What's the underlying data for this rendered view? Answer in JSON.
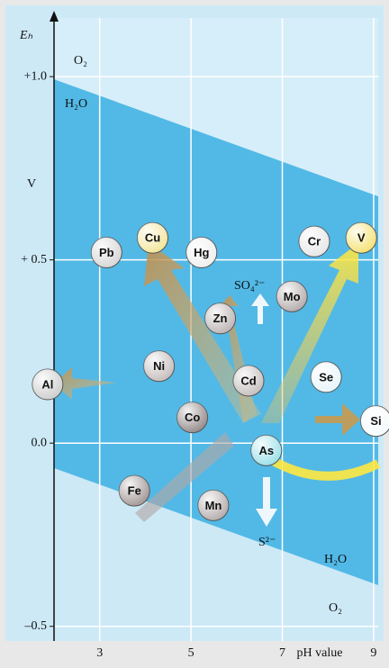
{
  "chart_data": {
    "type": "scatter",
    "y_label": "Eₕ",
    "y_unit": "V",
    "x_label": "pH value",
    "xlim": [
      2,
      9.1
    ],
    "ylim": [
      -0.54,
      1.16
    ],
    "xticks": [
      3,
      5,
      7,
      9
    ],
    "yticks": [
      {
        "value": 1.0,
        "label": "+1.0"
      },
      {
        "value": 0.5,
        "label": "+ 0.5"
      },
      {
        "value": 0,
        "label": "0.0"
      },
      {
        "value": -0.5,
        "label": "–0.5"
      }
    ],
    "grid": true,
    "categories": [
      "Pb",
      "Cu",
      "Hg",
      "Cr",
      "V",
      "Mo",
      "Zn",
      "Ni",
      "Cd",
      "Se",
      "Al",
      "Co",
      "Si",
      "As",
      "Fe",
      "Mn"
    ],
    "x": [
      3.15,
      4.16,
      5.23,
      7.7,
      8.73,
      7.21,
      5.64,
      4.3,
      6.26,
      7.96,
      1.86,
      5.03,
      9.05,
      6.65,
      3.76,
      5.49
    ],
    "values": [
      0.52,
      0.56,
      0.52,
      0.55,
      0.56,
      0.4,
      0.34,
      0.21,
      0.17,
      0.18,
      0.16,
      0.07,
      0.06,
      -0.02,
      -0.13,
      -0.17
    ],
    "point_colors": [
      "#d8d8d8",
      "#f3e7a0",
      "#f0f0f0",
      "#e8e8e8",
      "#f5e37a",
      "#b8b0b0",
      "#c0b8b8",
      "#c8c0c0",
      "#c8c2c2",
      "#e8f6fa",
      "#d0d0d0",
      "#9a9090",
      "#f6fbfd",
      "#9fe2ea",
      "#a89c9c",
      "#b8b0b0"
    ],
    "annotations": [
      "O₂",
      "H₂O",
      "SO₄²⁻",
      "S²⁻",
      "H₂O",
      "O₂"
    ]
  }
}
